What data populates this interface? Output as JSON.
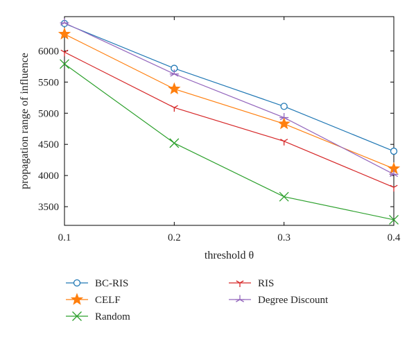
{
  "chart_data": {
    "type": "line",
    "title": "",
    "xlabel": "threshold θ",
    "ylabel": "propagation range of influence",
    "x": [
      0.1,
      0.2,
      0.3,
      0.4
    ],
    "xlim": [
      0.1,
      0.4
    ],
    "ylim": [
      3200,
      6550
    ],
    "xticks": [
      "0.1",
      "0.2",
      "0.3",
      "0.4"
    ],
    "yticks": [
      "3500",
      "4000",
      "4500",
      "5000",
      "5500",
      "6000"
    ],
    "grid": false,
    "legend_position": "below",
    "series": [
      {
        "name": "BC-RIS",
        "values": [
          6440,
          5720,
          5110,
          4390
        ],
        "color": "#1f77b4",
        "marker": "circle"
      },
      {
        "name": "CELF",
        "values": [
          6270,
          5390,
          4830,
          4110
        ],
        "color": "#ff7f0e",
        "marker": "star"
      },
      {
        "name": "Random",
        "values": [
          5790,
          4520,
          3660,
          3290
        ],
        "color": "#2ca02c",
        "marker": "x"
      },
      {
        "name": "RIS",
        "values": [
          5980,
          5090,
          4550,
          3810
        ],
        "color": "#d62728",
        "marker": "tri-down"
      },
      {
        "name": "Degree Discount",
        "values": [
          6450,
          5630,
          4930,
          4020
        ],
        "color": "#9467bd",
        "marker": "tri-star"
      }
    ]
  }
}
